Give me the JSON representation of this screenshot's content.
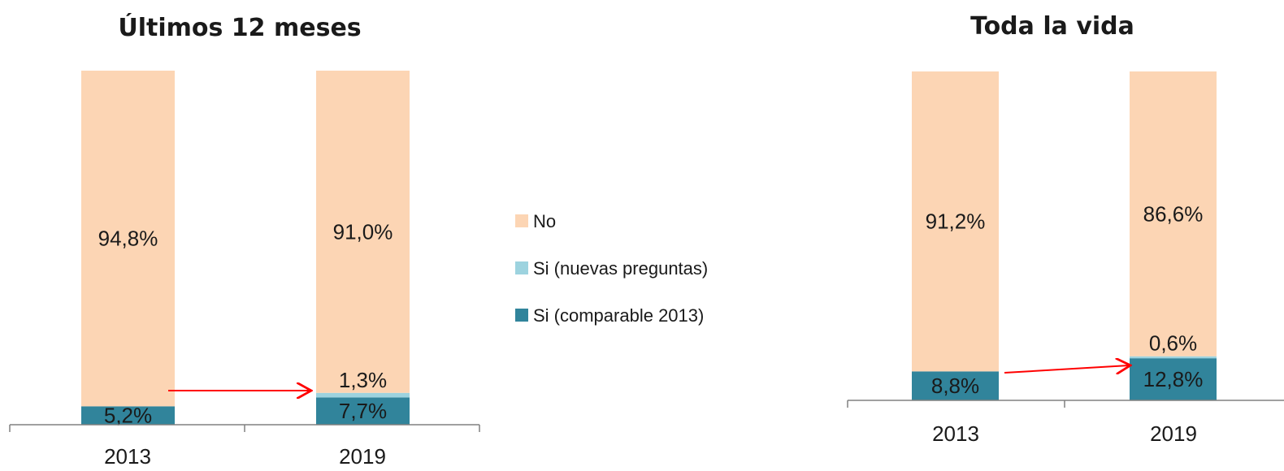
{
  "colors": {
    "no": "#FCD5B4",
    "si_nuevas": "#9DD3DF",
    "si_comparable": "#31849B",
    "axis": "#808080",
    "arrow": "#FF0000"
  },
  "legend": {
    "items": [
      {
        "key": "no",
        "label": "No"
      },
      {
        "key": "si_nuevas",
        "label": "Si (nuevas preguntas)"
      },
      {
        "key": "si_comparable",
        "label": "Si (comparable 2013)"
      }
    ]
  },
  "chart_data": [
    {
      "type": "bar",
      "stacked": true,
      "title": "Últimos 12 meses",
      "categories": [
        "2013",
        "2019"
      ],
      "series": [
        {
          "name": "Si (comparable 2013)",
          "key": "si_comparable",
          "values": [
            5.2,
            7.7
          ],
          "labels": [
            "5,2%",
            "7,7%"
          ]
        },
        {
          "name": "Si (nuevas preguntas)",
          "key": "si_nuevas",
          "values": [
            0,
            1.3
          ],
          "labels": [
            "",
            "1,3%"
          ]
        },
        {
          "name": "No",
          "key": "no",
          "values": [
            94.8,
            91.0
          ],
          "labels": [
            "94,8%",
            "91,0%"
          ]
        }
      ],
      "ylim": [
        0,
        100
      ],
      "grid": false,
      "annotation": "arrow from 2013 to 2019"
    },
    {
      "type": "bar",
      "stacked": true,
      "title": "Toda la vida",
      "categories": [
        "2013",
        "2019"
      ],
      "series": [
        {
          "name": "Si (comparable 2013)",
          "key": "si_comparable",
          "values": [
            8.8,
            12.8
          ],
          "labels": [
            "8,8%",
            "12,8%"
          ]
        },
        {
          "name": "Si (nuevas preguntas)",
          "key": "si_nuevas",
          "values": [
            0,
            0.6
          ],
          "labels": [
            "",
            "0,6%"
          ]
        },
        {
          "name": "No",
          "key": "no",
          "values": [
            91.2,
            86.6
          ],
          "labels": [
            "91,2%",
            "86,6%"
          ]
        }
      ],
      "ylim": [
        0,
        100
      ],
      "grid": false,
      "annotation": "arrow from 2013 to 2019"
    }
  ]
}
